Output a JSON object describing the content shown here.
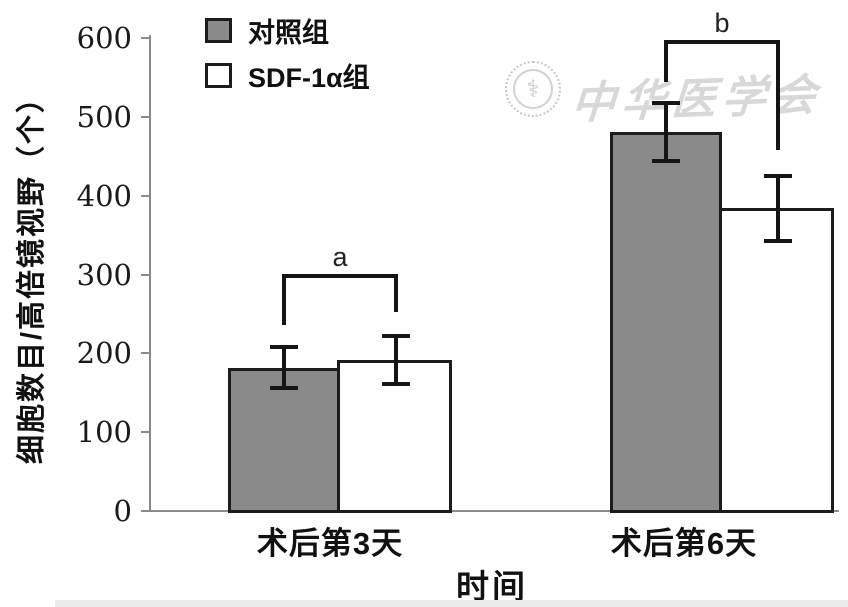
{
  "figure": {
    "watermark": {
      "text": "中华医学会",
      "emblem": "medical-association-seal",
      "symbol": "⚕"
    }
  },
  "chart_data": {
    "type": "bar",
    "title": "",
    "xlabel": "时间",
    "ylabel": "细胞数目/高倍镜视野（个）",
    "categories": [
      "术后第3天",
      "术后第6天"
    ],
    "category_keys": [
      "post-op-day-3",
      "post-op-day-6"
    ],
    "series": [
      {
        "key": "control-group",
        "name": "对照组",
        "fill": "#8a8a8a",
        "border": "#1c1c1c",
        "values": [
          182,
          481
        ],
        "errors": [
          29,
          39
        ]
      },
      {
        "key": "sdf1a-group",
        "name": "SDF-1α组",
        "fill": "#ffffff",
        "border": "#1c1c1c",
        "values": [
          192,
          384
        ],
        "errors": [
          33,
          44
        ]
      }
    ],
    "ylim": [
      0,
      600
    ],
    "yticks": [
      0,
      100,
      200,
      300,
      400,
      500,
      600
    ],
    "grid": false,
    "legend_position": "top-left-inside",
    "annotations": [
      {
        "label": "a",
        "group_index": 0,
        "bracket_y": 296,
        "left_leg_to": 236,
        "right_leg_to": 252
      },
      {
        "label": "b",
        "group_index": 1,
        "bracket_y": 592,
        "left_leg_to": 544,
        "right_leg_to": 458
      }
    ],
    "colors": {
      "axis": "#8a8a8a",
      "line": "#151515",
      "text": "#111111"
    }
  }
}
